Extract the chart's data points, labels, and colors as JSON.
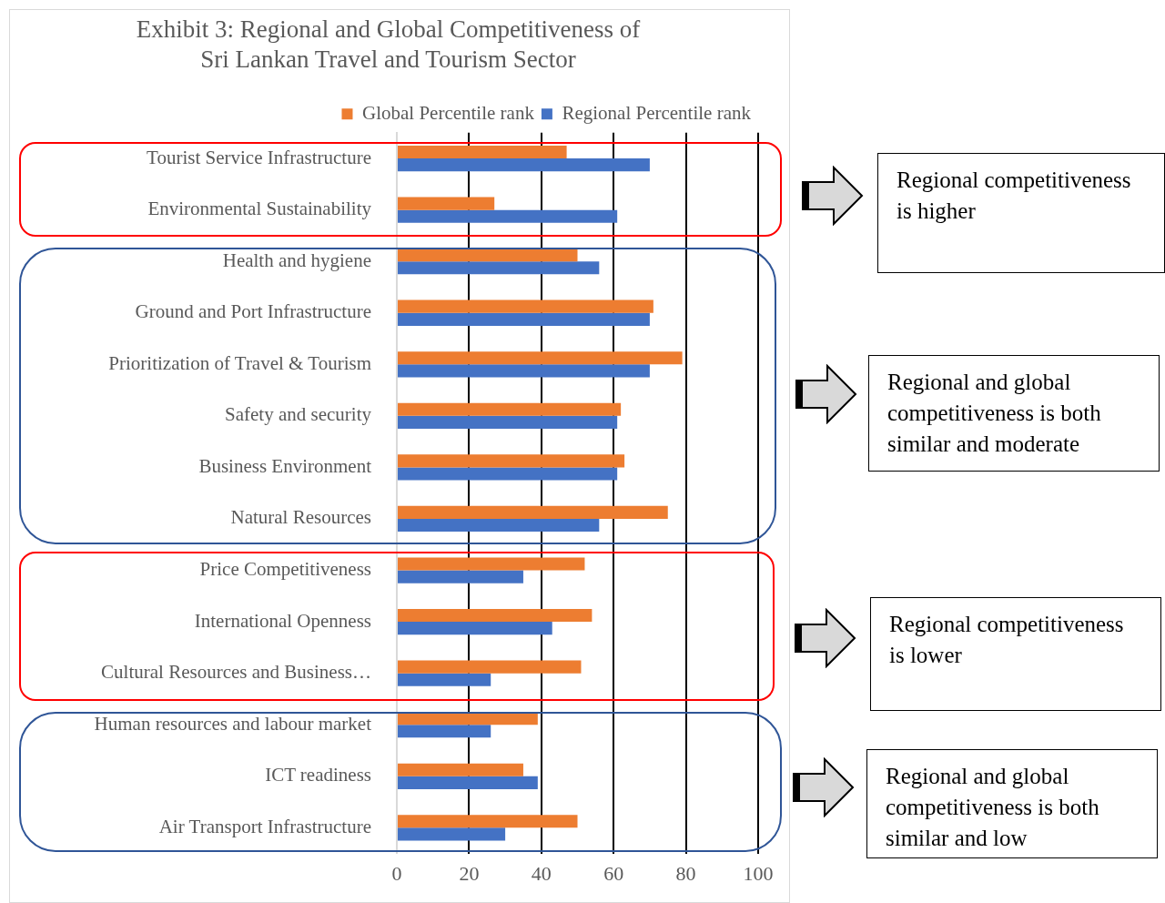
{
  "chart_data": {
    "type": "bar",
    "orientation": "horizontal",
    "title": "Exhibit 3: Regional and Global Competitiveness of\nSri Lankan Travel and Tourism Sector",
    "categories": [
      "Tourist Service Infrastructure",
      "Environmental Sustainability",
      "Health and hygiene",
      "Ground and Port Infrastructure",
      "Prioritization of Travel & Tourism",
      "Safety and security",
      "Business Environment",
      "Natural Resources",
      "Price Competitiveness",
      "International Openness",
      "Cultural Resources and Business…",
      "Human resources and labour market",
      "ICT readiness",
      "Air Transport Infrastructure"
    ],
    "series": [
      {
        "name": "Global Percentile rank",
        "color": "#ed7d31",
        "values": [
          47,
          27,
          50,
          71,
          79,
          62,
          63,
          75,
          52,
          54,
          51,
          39,
          35,
          50
        ]
      },
      {
        "name": "Regional Percentile rank",
        "color": "#4472c4",
        "values": [
          70,
          61,
          56,
          70,
          70,
          61,
          61,
          56,
          35,
          43,
          26,
          26,
          39,
          30
        ]
      }
    ],
    "xlim": [
      0,
      100
    ],
    "xticks": [
      0,
      20,
      40,
      60,
      80,
      100
    ],
    "grid": "x",
    "legend": "top",
    "annotations": [
      "Regional competitiveness is higher",
      "Regional and global competitiveness is both similar and moderate",
      "Regional competitiveness is lower",
      "Regional and global competitiveness is both similar and low"
    ]
  }
}
